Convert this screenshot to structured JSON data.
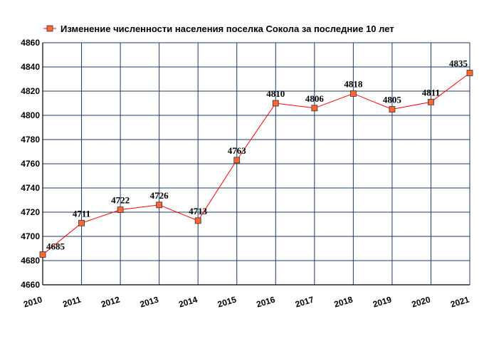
{
  "chart_data": {
    "type": "line",
    "title": "",
    "xlabel": "",
    "ylabel": "",
    "x": [
      "2010",
      "2011",
      "2012",
      "2013",
      "2014",
      "2015",
      "2016",
      "2017",
      "2018",
      "2019",
      "2020",
      "2021"
    ],
    "series": [
      {
        "name": "Изменение численности населения поселка Сокола за последние 10 лет",
        "values": [
          4685,
          4711,
          4722,
          4726,
          4713,
          4763,
          4810,
          4806,
          4818,
          4805,
          4811,
          4835
        ],
        "color": "#ff0000",
        "marker_color": "#ff6633"
      }
    ],
    "ylim": [
      4660,
      4860
    ],
    "yticks": [
      4660,
      4680,
      4700,
      4720,
      4740,
      4760,
      4780,
      4800,
      4820,
      4840,
      4860
    ],
    "grid": true,
    "grid_color": "#1f3864",
    "legend_position": "top-left"
  }
}
